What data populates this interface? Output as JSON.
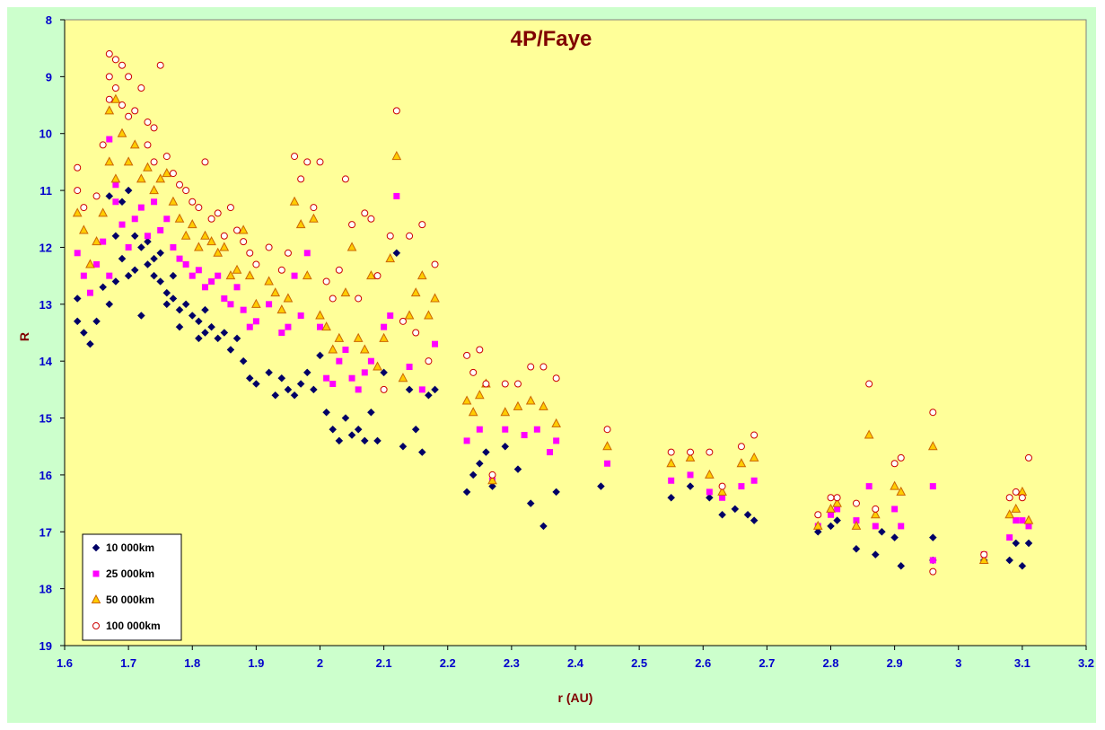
{
  "chart_data": {
    "type": "scatter",
    "title": "4P/Faye",
    "xlabel": "r (AU)",
    "ylabel": "R",
    "xlim": [
      1.6,
      3.2
    ],
    "ylim": [
      8,
      19
    ],
    "y_inverted": true,
    "x_ticks": [
      "1.6",
      "1.7",
      "1.8",
      "1.9",
      "2",
      "2.1",
      "2.2",
      "2.3",
      "2.4",
      "2.5",
      "2.6",
      "2.7",
      "2.8",
      "2.9",
      "3",
      "3.1",
      "3.2"
    ],
    "y_ticks": [
      "8",
      "9",
      "10",
      "11",
      "12",
      "13",
      "14",
      "15",
      "16",
      "17",
      "18",
      "19"
    ],
    "grid": false,
    "legend_position": "bottom-left",
    "colors": {
      "plot_bg": "#ffff99",
      "outer_bg": "#ccffcc",
      "title": "#800000",
      "ticks": "#0000cc"
    },
    "series": [
      {
        "name": "10 000km",
        "marker": "diamond",
        "color": "#000066",
        "x": [
          1.62,
          1.62,
          1.63,
          1.64,
          1.65,
          1.66,
          1.67,
          1.67,
          1.68,
          1.68,
          1.69,
          1.69,
          1.7,
          1.7,
          1.71,
          1.71,
          1.72,
          1.72,
          1.73,
          1.73,
          1.74,
          1.74,
          1.75,
          1.75,
          1.76,
          1.76,
          1.77,
          1.77,
          1.78,
          1.78,
          1.79,
          1.8,
          1.81,
          1.81,
          1.82,
          1.82,
          1.83,
          1.84,
          1.85,
          1.86,
          1.87,
          1.88,
          1.89,
          1.9,
          1.92,
          1.93,
          1.94,
          1.95,
          1.96,
          1.97,
          1.98,
          1.99,
          2.0,
          2.01,
          2.02,
          2.03,
          2.04,
          2.05,
          2.06,
          2.07,
          2.08,
          2.09,
          2.1,
          2.12,
          2.13,
          2.14,
          2.15,
          2.16,
          2.17,
          2.18,
          2.23,
          2.24,
          2.25,
          2.26,
          2.27,
          2.29,
          2.31,
          2.33,
          2.35,
          2.37,
          2.44,
          2.55,
          2.58,
          2.61,
          2.63,
          2.65,
          2.67,
          2.68,
          2.78,
          2.8,
          2.81,
          2.84,
          2.87,
          2.88,
          2.9,
          2.91,
          2.96,
          2.96,
          3.04,
          3.08,
          3.09,
          3.1,
          3.11
        ],
        "y": [
          12.9,
          13.3,
          13.5,
          13.7,
          13.3,
          12.7,
          11.1,
          13.0,
          11.8,
          12.6,
          12.2,
          11.2,
          12.5,
          11.0,
          12.4,
          11.8,
          12.0,
          13.2,
          12.3,
          11.9,
          12.5,
          12.2,
          12.6,
          12.1,
          12.8,
          13.0,
          12.5,
          12.9,
          13.1,
          13.4,
          13.0,
          13.2,
          13.3,
          13.6,
          13.1,
          13.5,
          13.4,
          13.6,
          13.5,
          13.8,
          13.6,
          14.0,
          14.3,
          14.4,
          14.2,
          14.6,
          14.3,
          14.5,
          14.6,
          14.4,
          14.2,
          14.5,
          13.9,
          14.9,
          15.2,
          15.4,
          15.0,
          15.3,
          15.2,
          15.4,
          14.9,
          15.4,
          14.2,
          12.1,
          15.5,
          14.5,
          15.2,
          15.6,
          14.6,
          14.5,
          16.3,
          16.0,
          15.8,
          15.6,
          16.2,
          15.5,
          15.9,
          16.5,
          16.9,
          16.3,
          16.2,
          16.4,
          16.2,
          16.4,
          16.7,
          16.6,
          16.7,
          16.8,
          17.0,
          16.9,
          16.8,
          17.3,
          17.4,
          17.0,
          17.1,
          17.6,
          17.1,
          17.5,
          17.5,
          17.5,
          17.2,
          17.6,
          17.2
        ]
      },
      {
        "name": "25 000km",
        "marker": "square",
        "color": "#ff00ff",
        "x": [
          1.62,
          1.63,
          1.64,
          1.65,
          1.66,
          1.67,
          1.67,
          1.68,
          1.68,
          1.69,
          1.7,
          1.71,
          1.72,
          1.73,
          1.74,
          1.75,
          1.76,
          1.77,
          1.78,
          1.79,
          1.8,
          1.81,
          1.82,
          1.83,
          1.84,
          1.85,
          1.86,
          1.87,
          1.88,
          1.89,
          1.9,
          1.92,
          1.94,
          1.95,
          1.96,
          1.97,
          1.98,
          2.0,
          2.01,
          2.02,
          2.03,
          2.04,
          2.05,
          2.06,
          2.07,
          2.08,
          2.1,
          2.11,
          2.12,
          2.14,
          2.16,
          2.18,
          2.23,
          2.25,
          2.27,
          2.29,
          2.32,
          2.34,
          2.36,
          2.37,
          2.45,
          2.55,
          2.58,
          2.61,
          2.63,
          2.66,
          2.68,
          2.78,
          2.8,
          2.81,
          2.84,
          2.86,
          2.87,
          2.9,
          2.91,
          2.96,
          2.96,
          3.04,
          3.08,
          3.09,
          3.1,
          3.11
        ],
        "y": [
          12.1,
          12.5,
          12.8,
          12.3,
          11.9,
          10.1,
          12.5,
          11.2,
          10.9,
          11.6,
          12.0,
          11.5,
          11.3,
          11.8,
          11.2,
          11.7,
          11.5,
          12.0,
          12.2,
          12.3,
          12.5,
          12.4,
          12.7,
          12.6,
          12.5,
          12.9,
          13.0,
          12.7,
          13.1,
          13.4,
          13.3,
          13.0,
          13.5,
          13.4,
          12.5,
          13.2,
          12.1,
          13.4,
          14.3,
          14.4,
          14.0,
          13.8,
          14.3,
          14.5,
          14.2,
          14.0,
          13.4,
          13.2,
          11.1,
          14.1,
          14.5,
          13.7,
          15.4,
          15.2,
          16.1,
          15.2,
          15.3,
          15.2,
          15.6,
          15.4,
          15.8,
          16.1,
          16.0,
          16.3,
          16.4,
          16.2,
          16.1,
          16.9,
          16.7,
          16.6,
          16.8,
          16.2,
          16.9,
          16.6,
          16.9,
          16.2,
          17.5,
          17.4,
          17.1,
          16.8,
          16.8,
          16.9
        ]
      },
      {
        "name": "50 000km",
        "marker": "triangle",
        "color": "#ffcc00",
        "x": [
          1.62,
          1.63,
          1.64,
          1.65,
          1.66,
          1.67,
          1.67,
          1.68,
          1.68,
          1.69,
          1.7,
          1.71,
          1.72,
          1.73,
          1.74,
          1.75,
          1.76,
          1.77,
          1.78,
          1.79,
          1.8,
          1.81,
          1.82,
          1.83,
          1.84,
          1.85,
          1.86,
          1.87,
          1.88,
          1.89,
          1.9,
          1.92,
          1.93,
          1.94,
          1.95,
          1.96,
          1.97,
          1.98,
          1.99,
          2.0,
          2.01,
          2.02,
          2.03,
          2.04,
          2.05,
          2.06,
          2.07,
          2.08,
          2.09,
          2.1,
          2.11,
          2.12,
          2.13,
          2.14,
          2.15,
          2.16,
          2.17,
          2.18,
          2.23,
          2.24,
          2.25,
          2.26,
          2.27,
          2.29,
          2.31,
          2.33,
          2.35,
          2.37,
          2.45,
          2.55,
          2.58,
          2.61,
          2.63,
          2.66,
          2.68,
          2.78,
          2.8,
          2.81,
          2.84,
          2.86,
          2.87,
          2.9,
          2.91,
          2.96,
          3.04,
          3.08,
          3.09,
          3.1,
          3.11
        ],
        "y": [
          11.4,
          11.7,
          12.3,
          11.9,
          11.4,
          9.6,
          10.5,
          10.8,
          9.4,
          10.0,
          10.5,
          10.2,
          10.8,
          10.6,
          11.0,
          10.8,
          10.7,
          11.2,
          11.5,
          11.8,
          11.6,
          12.0,
          11.8,
          11.9,
          12.1,
          12.0,
          12.5,
          12.4,
          11.7,
          12.5,
          13.0,
          12.6,
          12.8,
          13.1,
          12.9,
          11.2,
          11.6,
          12.5,
          11.5,
          13.2,
          13.4,
          13.8,
          13.6,
          12.8,
          12.0,
          13.6,
          13.8,
          12.5,
          14.1,
          13.6,
          12.2,
          10.4,
          14.3,
          13.2,
          12.8,
          12.5,
          13.2,
          12.9,
          14.7,
          14.9,
          14.6,
          14.4,
          16.1,
          14.9,
          14.8,
          14.7,
          14.8,
          15.1,
          15.5,
          15.8,
          15.7,
          16.0,
          16.3,
          15.8,
          15.7,
          16.9,
          16.6,
          16.5,
          16.9,
          15.3,
          16.7,
          16.2,
          16.3,
          15.5,
          17.5,
          16.7,
          16.6,
          16.3,
          16.8
        ]
      },
      {
        "name": "100 000km",
        "marker": "circle",
        "color": "#cc0000",
        "x": [
          1.62,
          1.62,
          1.63,
          1.65,
          1.66,
          1.67,
          1.67,
          1.67,
          1.68,
          1.68,
          1.69,
          1.69,
          1.7,
          1.7,
          1.71,
          1.72,
          1.73,
          1.73,
          1.74,
          1.74,
          1.75,
          1.76,
          1.77,
          1.78,
          1.79,
          1.8,
          1.81,
          1.82,
          1.83,
          1.84,
          1.85,
          1.86,
          1.87,
          1.88,
          1.89,
          1.9,
          1.92,
          1.94,
          1.95,
          1.96,
          1.97,
          1.98,
          1.99,
          2.0,
          2.01,
          2.02,
          2.03,
          2.04,
          2.05,
          2.06,
          2.07,
          2.08,
          2.09,
          2.1,
          2.11,
          2.12,
          2.13,
          2.14,
          2.15,
          2.16,
          2.17,
          2.18,
          2.23,
          2.24,
          2.25,
          2.26,
          2.27,
          2.29,
          2.31,
          2.33,
          2.35,
          2.37,
          2.45,
          2.55,
          2.58,
          2.61,
          2.63,
          2.66,
          2.68,
          2.78,
          2.8,
          2.81,
          2.84,
          2.86,
          2.87,
          2.9,
          2.91,
          2.96,
          2.96,
          3.04,
          3.08,
          3.09,
          3.1,
          3.11
        ],
        "y": [
          10.6,
          11.0,
          11.3,
          11.1,
          10.2,
          8.6,
          9.0,
          9.4,
          8.7,
          9.2,
          8.8,
          9.5,
          9.0,
          9.7,
          9.6,
          9.2,
          9.8,
          10.2,
          9.9,
          10.5,
          8.8,
          10.4,
          10.7,
          10.9,
          11.0,
          11.2,
          11.3,
          10.5,
          11.5,
          11.4,
          11.8,
          11.3,
          11.7,
          11.9,
          12.1,
          12.3,
          12.0,
          12.4,
          12.1,
          10.4,
          10.8,
          10.5,
          11.3,
          10.5,
          12.6,
          12.9,
          12.4,
          10.8,
          11.6,
          12.9,
          11.4,
          11.5,
          12.5,
          14.5,
          11.8,
          9.6,
          13.3,
          11.8,
          13.5,
          11.6,
          14.0,
          12.3,
          13.9,
          14.2,
          13.8,
          14.4,
          16.0,
          14.4,
          14.4,
          14.1,
          14.1,
          14.3,
          15.2,
          15.6,
          15.6,
          15.6,
          16.2,
          15.5,
          15.3,
          16.7,
          16.4,
          16.4,
          16.5,
          14.4,
          16.6,
          15.8,
          15.7,
          14.9,
          17.7,
          17.4,
          16.4,
          16.3,
          16.4,
          15.7
        ]
      }
    ]
  }
}
